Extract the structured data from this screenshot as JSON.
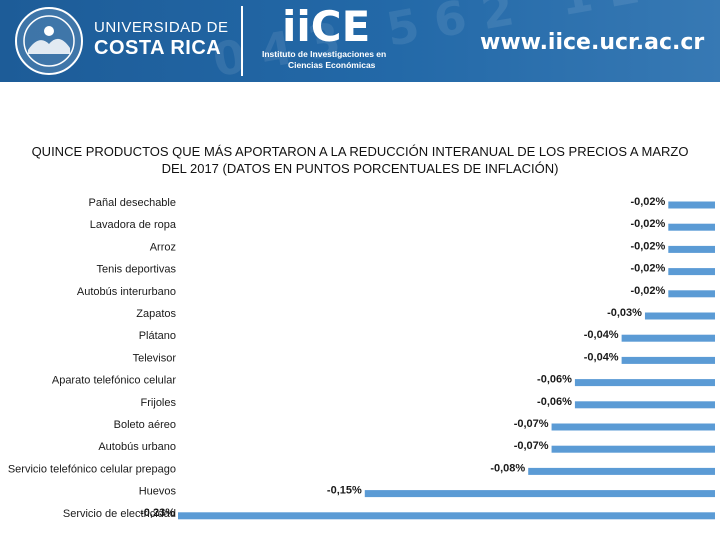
{
  "header": {
    "university_line1": "UNIVERSIDAD DE",
    "university_line2": "COSTA RICA",
    "logo_text": "iiCE",
    "institute_line1": "Instituto de Investigaciones en",
    "institute_line2": "Ciencias Económicas",
    "website": "www.iice.ucr.ac.cr",
    "brand_color": "#2369a8"
  },
  "chart_data": {
    "type": "bar",
    "orientation": "horizontal",
    "title": "QUINCE PRODUCTOS QUE MÁS APORTARON A LA REDUCCIÓN INTERANUAL DE LOS PRECIOS A MARZO DEL 2017 (DATOS EN PUNTOS PORCENTUALES DE INFLACIÓN)",
    "categories": [
      "Pañal desechable",
      "Lavadora de ropa",
      "Arroz",
      "Tenis deportivas",
      "Autobús interurbano",
      "Zapatos",
      "Plátano",
      "Televisor",
      "Aparato telefónico celular",
      "Frijoles",
      "Boleto aéreo",
      "Autobús urbano",
      "Servicio telefónico celular prepago",
      "Huevos",
      "Servicio de electricidad"
    ],
    "values": [
      -0.02,
      -0.02,
      -0.02,
      -0.02,
      -0.02,
      -0.03,
      -0.04,
      -0.04,
      -0.06,
      -0.06,
      -0.07,
      -0.07,
      -0.08,
      -0.15,
      -0.23
    ],
    "value_labels": [
      "-0,02%",
      "-0,02%",
      "-0,02%",
      "-0,02%",
      "-0,02%",
      "-0,03%",
      "-0,04%",
      "-0,04%",
      "-0,06%",
      "-0,06%",
      "-0,07%",
      "-0,07%",
      "-0,08%",
      "-0,15%",
      "-0,23%"
    ],
    "xlim": [
      -0.23,
      0
    ],
    "bar_color": "#5b9bd5",
    "grid": false,
    "legend": "none"
  }
}
